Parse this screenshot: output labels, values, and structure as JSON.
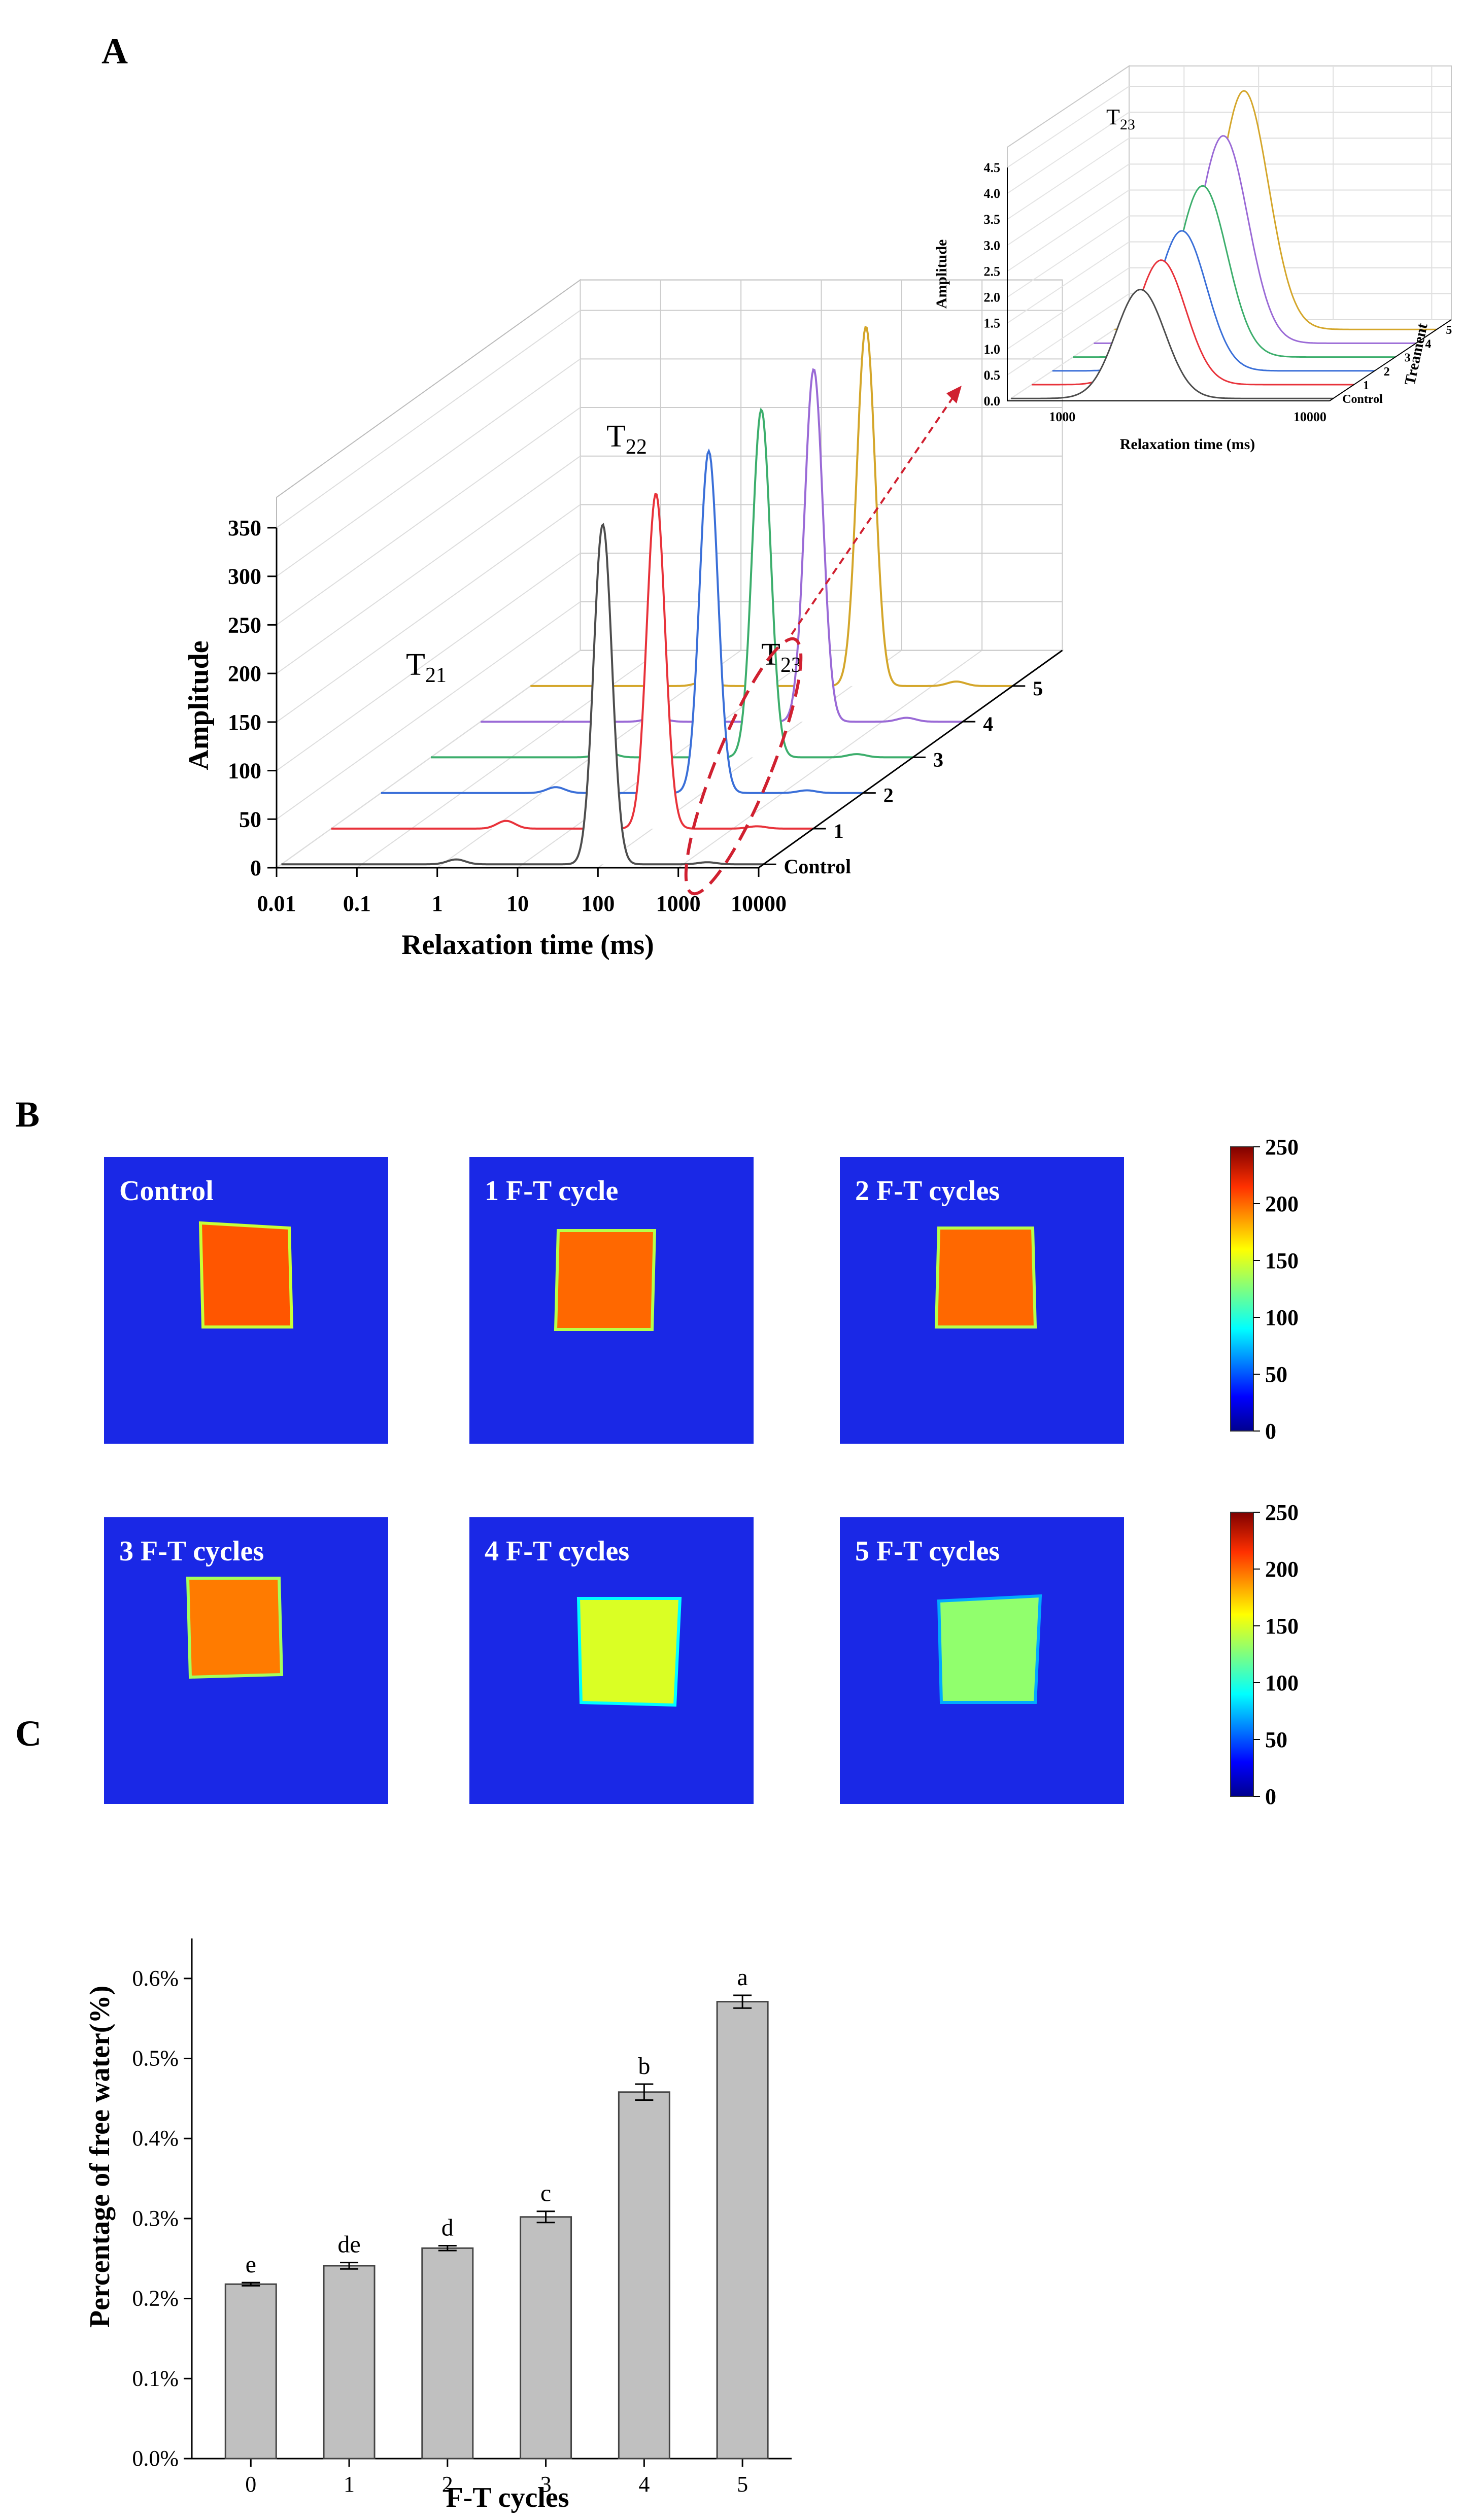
{
  "panels": {
    "a": "A",
    "b": "B",
    "c": "C"
  },
  "chart_data": [
    {
      "type": "line",
      "panel": "A",
      "xlabel": "Relaxation time (ms)",
      "ylabel": "Amplitude",
      "x_scale": "log",
      "xlim": [
        0.01,
        10000
      ],
      "ylim": [
        0,
        350
      ],
      "x_ticks": [
        "0.01",
        "0.1",
        "1",
        "10",
        "100",
        "1000",
        "10000"
      ],
      "y_ticks": [
        "0",
        "50",
        "100",
        "150",
        "200",
        "250",
        "300",
        "350"
      ],
      "z_ticks": [
        "Control",
        "1",
        "2",
        "3",
        "4",
        "5"
      ],
      "peak_labels": {
        "t21": "T",
        "t21_sub": "21",
        "t22": "T",
        "t22_sub": "22",
        "t23": "T",
        "t23_sub": "23"
      },
      "series": [
        {
          "name": "Control",
          "color": "#4d4d4d",
          "peaks": [
            {
              "center": 1.5,
              "amplitude": 5
            },
            {
              "center": 100,
              "amplitude": 350
            },
            {
              "center": 2000,
              "amplitude": 2.1
            }
          ]
        },
        {
          "name": "1",
          "color": "#e8323a",
          "peaks": [
            {
              "center": 1.5,
              "amplitude": 8
            },
            {
              "center": 110,
              "amplitude": 345
            },
            {
              "center": 2000,
              "amplitude": 2.4
            }
          ]
        },
        {
          "name": "2",
          "color": "#3a6fd8",
          "peaks": [
            {
              "center": 1.5,
              "amplitude": 6
            },
            {
              "center": 120,
              "amplitude": 352
            },
            {
              "center": 2000,
              "amplitude": 2.7
            }
          ]
        },
        {
          "name": "3",
          "color": "#3cae6c",
          "peaks": [
            {
              "center": 1.5,
              "amplitude": 6
            },
            {
              "center": 130,
              "amplitude": 358
            },
            {
              "center": 2000,
              "amplitude": 3.3
            }
          ]
        },
        {
          "name": "4",
          "color": "#9a6ad6",
          "peaks": [
            {
              "center": 1.5,
              "amplitude": 5
            },
            {
              "center": 140,
              "amplitude": 363
            },
            {
              "center": 2000,
              "amplitude": 4.0
            }
          ]
        },
        {
          "name": "5",
          "color": "#d4a62a",
          "peaks": [
            {
              "center": 1.5,
              "amplitude": 5
            },
            {
              "center": 150,
              "amplitude": 370
            },
            {
              "center": 2000,
              "amplitude": 4.6
            }
          ]
        }
      ],
      "inset": {
        "xlabel": "Relaxation time (ms)",
        "ylabel": "Amplitude",
        "zlabel": "Treament",
        "title": "T",
        "title_sub": "23",
        "x_ticks": [
          "1000",
          "10000"
        ],
        "y_ticks": [
          "0.0",
          "0.5",
          "1.0",
          "1.5",
          "2.0",
          "2.5",
          "3.0",
          "3.5",
          "4.0",
          "4.5"
        ],
        "z_ticks": [
          "Control",
          "1",
          "2",
          "3",
          "4",
          "5"
        ],
        "ylim": [
          0,
          4.5
        ]
      }
    },
    {
      "type": "heatmap",
      "panel": "B",
      "images": [
        "Control",
        "1 F-T cycle",
        "2 F-T cycles",
        "3 F-T cycles",
        "4 F-T cycles",
        "5 F-T cycles"
      ],
      "colorbar_ticks": [
        "250",
        "200",
        "150",
        "100",
        "50",
        "0"
      ],
      "colorbar_range": [
        0,
        250
      ],
      "sample_level": [
        205,
        200,
        200,
        195,
        150,
        130
      ]
    },
    {
      "type": "bar",
      "panel": "C",
      "categories": [
        "0",
        "1",
        "2",
        "3",
        "4",
        "5"
      ],
      "values": [
        0.218,
        0.241,
        0.263,
        0.302,
        0.458,
        0.571
      ],
      "errors": [
        0.002,
        0.004,
        0.003,
        0.007,
        0.01,
        0.008
      ],
      "letters": [
        "e",
        "de",
        "d",
        "c",
        "b",
        "a"
      ],
      "xlabel": "F-T cycles",
      "ylabel": "Percentage of free water(%)",
      "ylim": [
        0,
        0.65
      ],
      "y_ticks": [
        "0.0%",
        "0.1%",
        "0.2%",
        "0.3%",
        "0.4%",
        "0.5%",
        "0.6%"
      ],
      "bar_color": "#c0c0c0"
    }
  ]
}
